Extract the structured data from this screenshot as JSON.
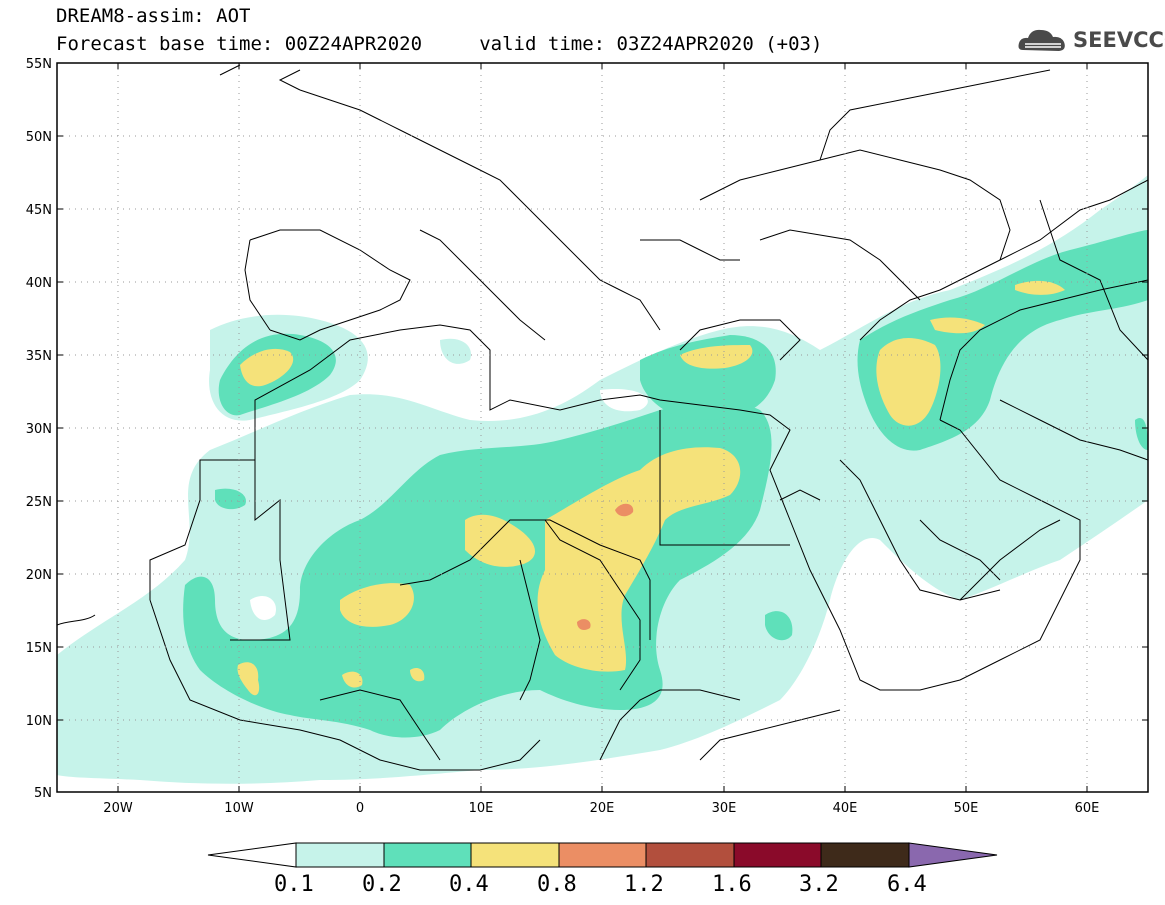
{
  "header": {
    "line1": "DREAM8-assim: AOT",
    "line2": "Forecast base time: 00Z24APR2020     valid time: 03Z24APR2020 (+03)"
  },
  "logo": {
    "text": "SEEVCCC",
    "icon": "cloud-icon"
  },
  "map": {
    "lat_labels": [
      "55N",
      "50N",
      "45N",
      "40N",
      "35N",
      "30N",
      "25N",
      "20N",
      "15N",
      "10N",
      "5N"
    ],
    "lon_labels": [
      "20W",
      "10W",
      "0",
      "10E",
      "20E",
      "30E",
      "40E",
      "50E",
      "60E"
    ],
    "extent": {
      "lon": [
        -25,
        65
      ],
      "lat": [
        5,
        55
      ]
    }
  },
  "colorbar": {
    "colors": [
      "#ffffff",
      "#c6f3ea",
      "#5fe0ba",
      "#f5e27a",
      "#eb8e64",
      "#b24f3d",
      "#8a0a2a",
      "#3e2a1a",
      "#8a68ae"
    ],
    "labels": [
      "0.1",
      "0.2",
      "0.4",
      "0.8",
      "1.2",
      "1.6",
      "3.2",
      "6.4"
    ]
  }
}
